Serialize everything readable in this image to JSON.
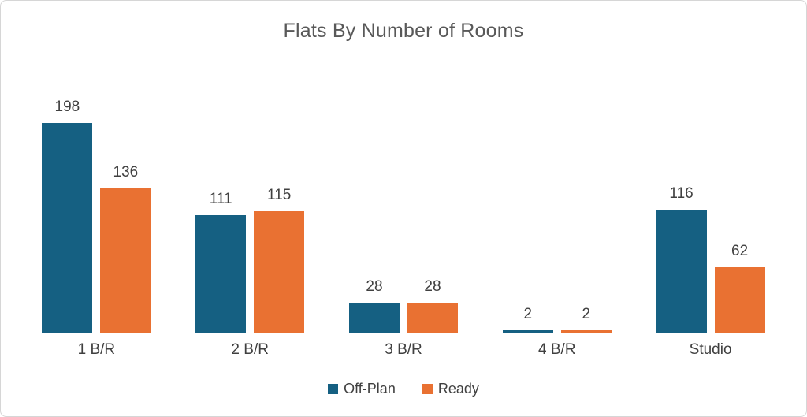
{
  "title": "Flats By Number of Rooms",
  "colors": {
    "off_plan": "#156082",
    "ready": "#E97132",
    "title_text": "#595959",
    "label_text": "#404040",
    "axis_line": "#D9D9D9",
    "frame_border": "#D6D6D6",
    "background": "#FFFFFF"
  },
  "legend": {
    "position": "bottom",
    "items": [
      {
        "label": "Off-Plan",
        "color": "#156082"
      },
      {
        "label": "Ready",
        "color": "#E97132"
      }
    ]
  },
  "chart_data": {
    "type": "bar",
    "title": "Flats By Number of Rooms",
    "categories": [
      "1 B/R",
      "2 B/R",
      "3 B/R",
      "4 B/R",
      "Studio"
    ],
    "series": [
      {
        "name": "Off-Plan",
        "color": "#156082",
        "values": [
          198,
          111,
          28,
          2,
          116
        ]
      },
      {
        "name": "Ready",
        "color": "#E97132",
        "values": [
          136,
          115,
          28,
          2,
          62
        ]
      }
    ],
    "xlabel": "",
    "ylabel": "",
    "ylim": [
      0,
      198
    ],
    "grid": false,
    "y_axis_visible": false,
    "data_labels": true,
    "legend_position": "bottom"
  }
}
